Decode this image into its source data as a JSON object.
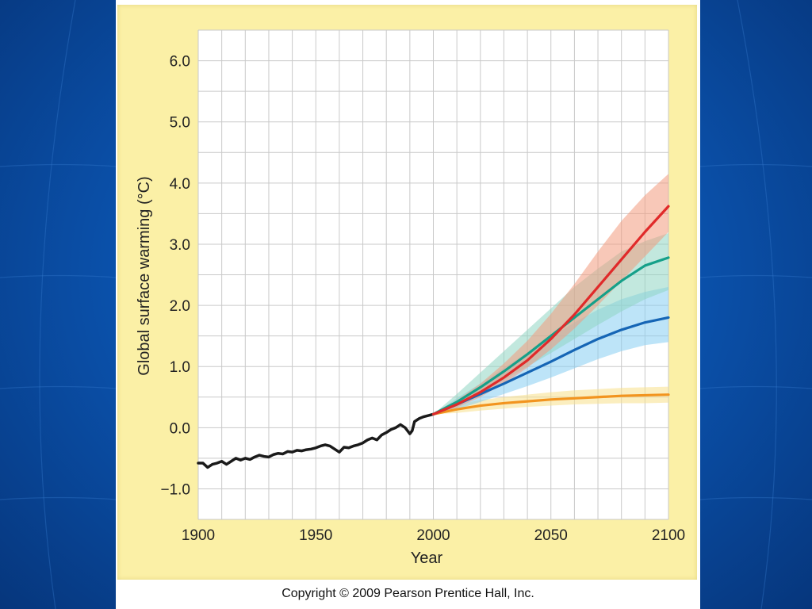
{
  "slide": {
    "background_color": "#0b54b0",
    "panel_color": "#fbf0a6",
    "copyright": "Copyright © 2009 Pearson Prentice Hall, Inc."
  },
  "chart_data": {
    "type": "line",
    "title": "",
    "xlabel": "Year",
    "ylabel": "Global surface warming (°C)",
    "xlim": [
      1900,
      2100
    ],
    "ylim": [
      -1.5,
      6.5
    ],
    "xticks": [
      1900,
      1950,
      2000,
      2050,
      2100
    ],
    "xtick_labels": [
      "1900",
      "1950",
      "2000",
      "2050",
      "2100"
    ],
    "yticks": [
      -1.0,
      0.0,
      1.0,
      2.0,
      3.0,
      4.0,
      5.0,
      6.0
    ],
    "ytick_labels": [
      "−1.0",
      "0.0",
      "1.0",
      "2.0",
      "3.0",
      "4.0",
      "5.0",
      "6.0"
    ],
    "grid": true,
    "series": [
      {
        "color": "#1a1a1a",
        "x": [
          1900,
          1902,
          1904,
          1906,
          1908,
          1910,
          1912,
          1914,
          1916,
          1918,
          1920,
          1922,
          1924,
          1926,
          1928,
          1930,
          1932,
          1934,
          1936,
          1938,
          1940,
          1942,
          1944,
          1946,
          1948,
          1950,
          1952,
          1954,
          1956,
          1958,
          1960,
          1962,
          1964,
          1966,
          1968,
          1970,
          1972,
          1974,
          1976,
          1978,
          1980,
          1982,
          1984,
          1986,
          1988,
          1990,
          1991,
          1992,
          1994,
          1996,
          1998,
          2000
        ],
        "values": [
          -0.58,
          -0.58,
          -0.65,
          -0.6,
          -0.58,
          -0.55,
          -0.6,
          -0.55,
          -0.5,
          -0.53,
          -0.5,
          -0.52,
          -0.48,
          -0.45,
          -0.47,
          -0.48,
          -0.44,
          -0.42,
          -0.43,
          -0.39,
          -0.4,
          -0.37,
          -0.38,
          -0.36,
          -0.35,
          -0.33,
          -0.3,
          -0.28,
          -0.3,
          -0.35,
          -0.4,
          -0.32,
          -0.33,
          -0.3,
          -0.28,
          -0.25,
          -0.2,
          -0.17,
          -0.2,
          -0.12,
          -0.08,
          -0.03,
          0.0,
          0.05,
          0.0,
          -0.1,
          -0.05,
          0.1,
          0.15,
          0.18,
          0.2,
          0.22
        ]
      },
      {
        "color": "#f2941f",
        "band_color": "#f7e08a",
        "x": [
          2000,
          2010,
          2020,
          2030,
          2040,
          2050,
          2060,
          2070,
          2080,
          2090,
          2100
        ],
        "values": [
          0.22,
          0.3,
          0.36,
          0.4,
          0.43,
          0.46,
          0.48,
          0.5,
          0.52,
          0.53,
          0.54
        ],
        "upper": [
          0.22,
          0.38,
          0.45,
          0.5,
          0.54,
          0.58,
          0.61,
          0.63,
          0.65,
          0.66,
          0.67
        ],
        "lower": [
          0.22,
          0.24,
          0.28,
          0.31,
          0.34,
          0.36,
          0.38,
          0.39,
          0.4,
          0.4,
          0.41
        ]
      },
      {
        "color": "#1565b5",
        "band_color": "#86cdf2",
        "x": [
          2000,
          2010,
          2020,
          2030,
          2040,
          2050,
          2060,
          2070,
          2080,
          2090,
          2100
        ],
        "values": [
          0.22,
          0.38,
          0.55,
          0.72,
          0.9,
          1.08,
          1.27,
          1.45,
          1.6,
          1.72,
          1.8
        ],
        "upper": [
          0.22,
          0.48,
          0.72,
          0.98,
          1.23,
          1.48,
          1.72,
          1.93,
          2.1,
          2.22,
          2.3
        ],
        "lower": [
          0.22,
          0.3,
          0.42,
          0.55,
          0.68,
          0.82,
          0.97,
          1.12,
          1.25,
          1.35,
          1.4
        ]
      },
      {
        "color": "#15a089",
        "band_color": "#8fd6c2",
        "x": [
          2000,
          2010,
          2020,
          2030,
          2040,
          2050,
          2060,
          2070,
          2080,
          2090,
          2100
        ],
        "values": [
          0.22,
          0.42,
          0.66,
          0.92,
          1.2,
          1.5,
          1.8,
          2.1,
          2.4,
          2.65,
          2.78
        ],
        "upper": [
          0.22,
          0.55,
          0.9,
          1.25,
          1.6,
          1.95,
          2.3,
          2.6,
          2.88,
          3.05,
          3.18
        ],
        "lower": [
          0.22,
          0.35,
          0.55,
          0.78,
          1.0,
          1.22,
          1.45,
          1.68,
          1.9,
          2.1,
          2.25
        ]
      },
      {
        "color": "#e02a2a",
        "band_color": "#f29a7e",
        "x": [
          2000,
          2010,
          2020,
          2030,
          2040,
          2050,
          2060,
          2070,
          2080,
          2090,
          2100
        ],
        "values": [
          0.22,
          0.38,
          0.58,
          0.82,
          1.1,
          1.45,
          1.85,
          2.3,
          2.75,
          3.2,
          3.62
        ],
        "upper": [
          0.22,
          0.45,
          0.72,
          1.05,
          1.42,
          1.86,
          2.35,
          2.88,
          3.38,
          3.8,
          4.15
        ],
        "lower": [
          0.22,
          0.33,
          0.5,
          0.72,
          0.98,
          1.28,
          1.62,
          2.0,
          2.4,
          2.8,
          3.2
        ]
      }
    ]
  }
}
